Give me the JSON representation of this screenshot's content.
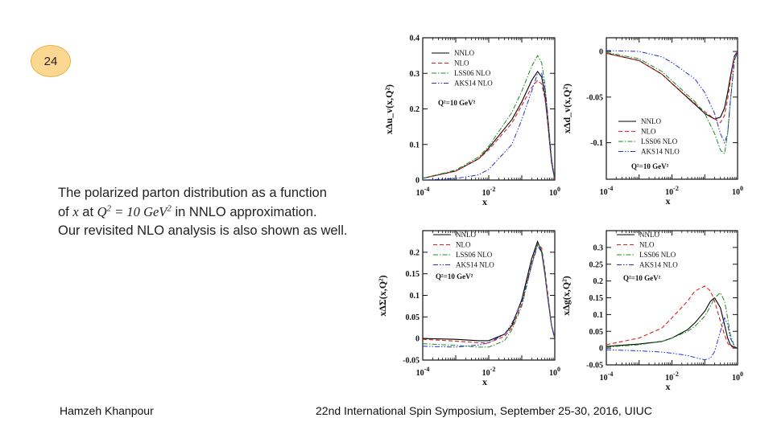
{
  "slide": {
    "number": "24",
    "caption": {
      "line1": "The polarized parton distribution as a function",
      "line2_pre": "of ",
      "line2_x": "x",
      "line2_at": " at ",
      "line2_q": "Q",
      "line2_q_exp": "2",
      "line2_eq": " = 10 ",
      "line2_gev": "GeV",
      "line2_gev_exp": "2",
      "line2_post": " in NNLO approximation.",
      "line3": "Our revisited NLO analysis is also shown as well."
    },
    "footer_left": "Hamzeh Khanpour",
    "footer_right": "22nd International Spin Symposium, September 25-30, 2016, UIUC"
  },
  "colors": {
    "NNLO": "#000000",
    "NLO": "#d62020",
    "LSS06 NLO": "#1f8a1f",
    "AKS14 NLO": "#2233cc"
  },
  "chart_data": [
    {
      "type": "line",
      "ylabel": "xΔu_v(x,Q²)",
      "xlabel": "x",
      "xscale": "log",
      "xlim": [
        0.0001,
        1
      ],
      "ylim": [
        0,
        0.4
      ],
      "yticks": [
        "0",
        "0.1",
        "0.2",
        "0.3",
        "0.4"
      ],
      "xticks": [
        "10^-4",
        "10^-2",
        "10^0"
      ],
      "annotation": "Q²=10 GeV²",
      "legend": [
        "NNLO",
        "NLO",
        "LSS06 NLO",
        "AKS14 NLO"
      ],
      "series": [
        {
          "name": "NNLO",
          "x": [
            0.0001,
            0.001,
            0.005,
            0.01,
            0.05,
            0.1,
            0.2,
            0.3,
            0.4,
            0.5,
            0.6,
            0.8,
            1
          ],
          "y": [
            0.005,
            0.025,
            0.06,
            0.09,
            0.17,
            0.22,
            0.28,
            0.305,
            0.29,
            0.24,
            0.17,
            0.05,
            0
          ]
        },
        {
          "name": "NLO",
          "x": [
            0.0001,
            0.001,
            0.005,
            0.01,
            0.05,
            0.1,
            0.2,
            0.3,
            0.4,
            0.5,
            0.6,
            0.8,
            1
          ],
          "y": [
            0.005,
            0.025,
            0.06,
            0.085,
            0.16,
            0.21,
            0.26,
            0.28,
            0.27,
            0.23,
            0.17,
            0.05,
            0
          ]
        },
        {
          "name": "LSS06 NLO",
          "x": [
            0.0001,
            0.001,
            0.005,
            0.01,
            0.05,
            0.1,
            0.2,
            0.3,
            0.4,
            0.5,
            0.6,
            0.8,
            1
          ],
          "y": [
            0.005,
            0.028,
            0.065,
            0.095,
            0.19,
            0.25,
            0.32,
            0.35,
            0.33,
            0.27,
            0.19,
            0.06,
            0
          ]
        },
        {
          "name": "AKS14 NLO",
          "x": [
            0.0001,
            0.001,
            0.005,
            0.01,
            0.05,
            0.1,
            0.2,
            0.3,
            0.4,
            0.5,
            0.6,
            0.8,
            1
          ],
          "y": [
            0.0,
            0.004,
            0.015,
            0.03,
            0.1,
            0.17,
            0.25,
            0.3,
            0.3,
            0.26,
            0.19,
            0.06,
            0
          ]
        }
      ]
    },
    {
      "type": "line",
      "ylabel": "xΔd_v(x,Q²)",
      "xlabel": "x",
      "xscale": "log",
      "xlim": [
        0.0001,
        1
      ],
      "ylim": [
        -0.14,
        0.015
      ],
      "yticks": [
        "0",
        "-0.05",
        "-0.1"
      ],
      "xticks": [
        "10^-4",
        "10^-2",
        "10^0"
      ],
      "annotation": "Q²=10 GeV²",
      "legend": [
        "NNLO",
        "NLO",
        "LSS06 NLO",
        "AKS14 NLO"
      ],
      "series": [
        {
          "name": "NNLO",
          "x": [
            0.0001,
            0.001,
            0.005,
            0.01,
            0.05,
            0.1,
            0.2,
            0.3,
            0.4,
            0.5,
            0.6,
            0.8,
            1
          ],
          "y": [
            -0.002,
            -0.01,
            -0.025,
            -0.035,
            -0.058,
            -0.068,
            -0.074,
            -0.072,
            -0.062,
            -0.045,
            -0.028,
            -0.005,
            0
          ]
        },
        {
          "name": "NLO",
          "x": [
            0.0001,
            0.001,
            0.005,
            0.01,
            0.05,
            0.1,
            0.2,
            0.3,
            0.4,
            0.5,
            0.6,
            0.8,
            1
          ],
          "y": [
            -0.002,
            -0.01,
            -0.025,
            -0.035,
            -0.057,
            -0.066,
            -0.074,
            -0.078,
            -0.07,
            -0.052,
            -0.032,
            -0.006,
            0
          ]
        },
        {
          "name": "LSS06 NLO",
          "x": [
            0.0001,
            0.001,
            0.005,
            0.01,
            0.05,
            0.1,
            0.2,
            0.3,
            0.4,
            0.5,
            0.6,
            0.8,
            1
          ],
          "y": [
            -0.001,
            -0.008,
            -0.022,
            -0.032,
            -0.055,
            -0.068,
            -0.09,
            -0.108,
            -0.112,
            -0.09,
            -0.055,
            -0.01,
            0
          ]
        },
        {
          "name": "AKS14 NLO",
          "x": [
            0.0001,
            0.001,
            0.005,
            0.01,
            0.05,
            0.1,
            0.2,
            0.3,
            0.4,
            0.5,
            0.6,
            0.8,
            1
          ],
          "y": [
            0.001,
            0.0,
            -0.006,
            -0.012,
            -0.03,
            -0.045,
            -0.068,
            -0.09,
            -0.1,
            -0.09,
            -0.055,
            -0.01,
            0
          ]
        }
      ]
    },
    {
      "type": "line",
      "ylabel": "xΔΣ(x,Q²)",
      "xlabel": "x",
      "xscale": "log",
      "xlim": [
        0.0001,
        1
      ],
      "ylim": [
        -0.05,
        0.25
      ],
      "yticks": [
        "-0.05",
        "0",
        "0.05",
        "0.1",
        "0.15",
        "0.2"
      ],
      "xticks": [
        "10^-4",
        "10^-2",
        "10^0"
      ],
      "annotation": "Q²=10 GeV²",
      "legend": [
        "NNLO",
        "NLO",
        "LSS06 NLO",
        "AKS14 NLO"
      ],
      "series": [
        {
          "name": "NNLO",
          "x": [
            0.0001,
            0.001,
            0.005,
            0.01,
            0.03,
            0.05,
            0.1,
            0.2,
            0.3,
            0.4,
            0.5,
            0.6,
            0.8,
            1
          ],
          "y": [
            0.0,
            -0.002,
            -0.005,
            -0.005,
            0.01,
            0.03,
            0.09,
            0.185,
            0.225,
            0.2,
            0.15,
            0.1,
            0.03,
            0
          ]
        },
        {
          "name": "NLO",
          "x": [
            0.0001,
            0.001,
            0.005,
            0.01,
            0.03,
            0.05,
            0.1,
            0.2,
            0.3,
            0.4,
            0.5,
            0.6,
            0.8,
            1
          ],
          "y": [
            -0.002,
            -0.006,
            -0.01,
            -0.01,
            0.005,
            0.025,
            0.08,
            0.175,
            0.22,
            0.21,
            0.16,
            0.11,
            0.03,
            0
          ]
        },
        {
          "name": "LSS06 NLO",
          "x": [
            0.0001,
            0.001,
            0.005,
            0.01,
            0.03,
            0.05,
            0.1,
            0.2,
            0.3,
            0.4,
            0.5,
            0.6,
            0.8,
            1
          ],
          "y": [
            -0.012,
            -0.016,
            -0.02,
            -0.02,
            -0.005,
            0.02,
            0.075,
            0.17,
            0.22,
            0.205,
            0.155,
            0.1,
            0.03,
            0
          ]
        },
        {
          "name": "AKS14 NLO",
          "x": [
            0.0001,
            0.001,
            0.005,
            0.01,
            0.03,
            0.05,
            0.1,
            0.2,
            0.3,
            0.4,
            0.5,
            0.6,
            0.8,
            1
          ],
          "y": [
            -0.018,
            -0.02,
            -0.015,
            -0.01,
            0.01,
            0.035,
            0.085,
            0.17,
            0.215,
            0.2,
            0.15,
            0.1,
            0.03,
            0
          ]
        }
      ]
    },
    {
      "type": "line",
      "ylabel": "xΔg(x,Q²)",
      "xlabel": "x",
      "xscale": "log",
      "xlim": [
        0.0001,
        1
      ],
      "ylim": [
        -0.05,
        0.35
      ],
      "yticks": [
        "-0.05",
        "0",
        "0.05",
        "0.1",
        "0.15",
        "0.2",
        "0.25",
        "0.3"
      ],
      "xticks": [
        "10^-4",
        "10^-2",
        "10^0"
      ],
      "annotation": "Q²=10 GeV²",
      "legend": [
        "NNLO",
        "NLO",
        "LSS06 NLO",
        "AKS14 NLO"
      ],
      "series": [
        {
          "name": "NNLO",
          "x": [
            0.0001,
            0.001,
            0.005,
            0.01,
            0.03,
            0.05,
            0.1,
            0.15,
            0.2,
            0.3,
            0.4,
            0.5,
            0.6,
            0.8,
            1
          ],
          "y": [
            0.005,
            0.012,
            0.02,
            0.03,
            0.055,
            0.075,
            0.11,
            0.14,
            0.15,
            0.12,
            0.07,
            0.03,
            0.01,
            0.002,
            0
          ]
        },
        {
          "name": "NLO",
          "x": [
            0.0001,
            0.001,
            0.005,
            0.01,
            0.03,
            0.05,
            0.1,
            0.15,
            0.2,
            0.3,
            0.4,
            0.5,
            0.6,
            0.8,
            1
          ],
          "y": [
            0.01,
            0.03,
            0.06,
            0.09,
            0.14,
            0.17,
            0.185,
            0.17,
            0.14,
            0.08,
            0.04,
            0.015,
            0.005,
            0.001,
            0
          ]
        },
        {
          "name": "LSS06 NLO",
          "x": [
            0.0001,
            0.001,
            0.005,
            0.01,
            0.03,
            0.05,
            0.1,
            0.15,
            0.2,
            0.3,
            0.4,
            0.5,
            0.6,
            0.8,
            1
          ],
          "y": [
            0.003,
            0.01,
            0.02,
            0.03,
            0.05,
            0.065,
            0.095,
            0.125,
            0.15,
            0.165,
            0.14,
            0.09,
            0.04,
            0.005,
            0
          ]
        },
        {
          "name": "AKS14 NLO",
          "x": [
            0.0001,
            0.001,
            0.005,
            0.01,
            0.03,
            0.05,
            0.1,
            0.15,
            0.2,
            0.3,
            0.4,
            0.5,
            0.6,
            0.8,
            1
          ],
          "y": [
            -0.005,
            -0.008,
            -0.012,
            -0.015,
            -0.022,
            -0.028,
            -0.035,
            -0.03,
            -0.01,
            0.05,
            0.09,
            0.07,
            0.03,
            0.005,
            0
          ]
        }
      ]
    }
  ]
}
